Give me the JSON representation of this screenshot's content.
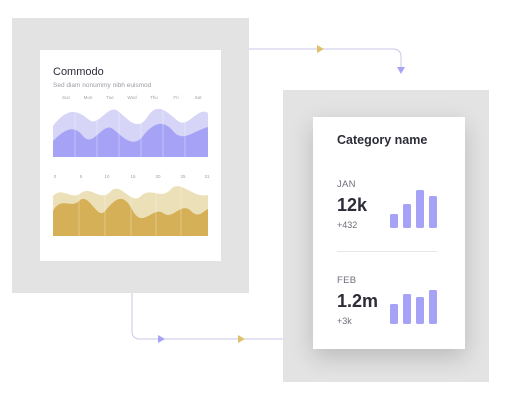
{
  "left_card": {
    "title": "Commodo",
    "subtitle": "Sed diam nonummy nibh euismod",
    "weekdays": [
      "Sun",
      "Mon",
      "Tue",
      "Wed",
      "Thu",
      "Fri",
      "Sat"
    ],
    "dates": [
      "0",
      "5",
      "10",
      "15",
      "20",
      "25",
      "31"
    ]
  },
  "right_card": {
    "title": "Category name",
    "stats": [
      {
        "month": "JAN",
        "value": "12k",
        "delta": "+432"
      },
      {
        "month": "FEB",
        "value": "1.2m",
        "delta": "+3k"
      }
    ]
  },
  "colors": {
    "purple": "#a6a3f6",
    "purple_light": "#d6d5f7",
    "gold": "#d5b056",
    "gold_light": "#ece0b9",
    "connector": "#c9c7ea",
    "arrow_gold": "#e0bf6a",
    "arrow_purple": "#a6a3f6"
  }
}
